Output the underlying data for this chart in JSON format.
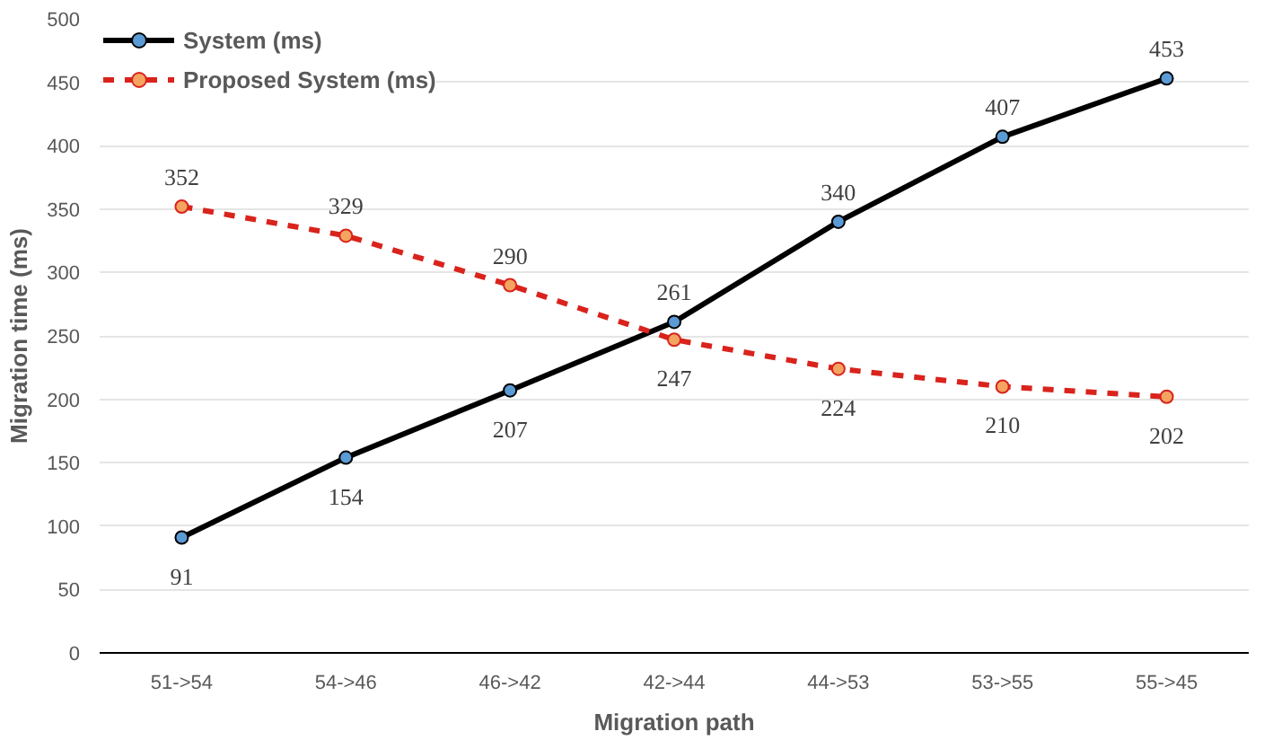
{
  "chart_data": {
    "type": "line",
    "xlabel": "Migration path",
    "ylabel": "Migration time (ms)",
    "categories": [
      "51->54",
      "54->46",
      "46->42",
      "42->44",
      "44->53",
      "53->55",
      "55->45"
    ],
    "series": [
      {
        "name": "System (ms)",
        "color": "#000000",
        "values": [
          91,
          154,
          207,
          261,
          340,
          407,
          453
        ],
        "line_style": "solid"
      },
      {
        "name": "Proposed System (ms)",
        "color": "#d9231c",
        "values": [
          352,
          329,
          290,
          247,
          224,
          210,
          202
        ],
        "line_style": "dashed"
      }
    ],
    "ylim": [
      0,
      500
    ],
    "yticks": [
      0,
      50,
      100,
      150,
      200,
      250,
      300,
      350,
      400,
      450,
      500
    ],
    "grid": "y",
    "legend": "top left",
    "marker": "circle",
    "data_labels": true
  }
}
